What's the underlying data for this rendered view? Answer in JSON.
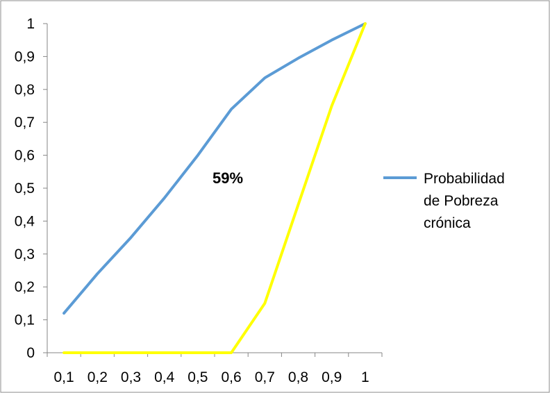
{
  "chart_data": {
    "type": "line",
    "x": [
      "0,1",
      "0,2",
      "0,3",
      "0,4",
      "0,5",
      "0,6",
      "0,7",
      "0,8",
      "0,9",
      "1"
    ],
    "y_ticks": [
      "0",
      "0,1",
      "0,2",
      "0,3",
      "0,4",
      "0,5",
      "0,6",
      "0,7",
      "0,8",
      "0,9",
      "1"
    ],
    "ylim": [
      0,
      1
    ],
    "grid": false,
    "legend_position": "right",
    "series": [
      {
        "name": "Probabilidad de Pobreza crónica",
        "color": "#5B9BD5",
        "points": [
          [
            0.1,
            0.12
          ],
          [
            0.2,
            0.24
          ],
          [
            0.3,
            0.35
          ],
          [
            0.4,
            0.47
          ],
          [
            0.5,
            0.6
          ],
          [
            0.6,
            0.74
          ],
          [
            0.7,
            0.835
          ],
          [
            0.8,
            0.895
          ],
          [
            0.9,
            0.95
          ],
          [
            1.0,
            1.0
          ]
        ]
      },
      {
        "color": "#FFFF00",
        "points": [
          [
            0.1,
            0.0
          ],
          [
            0.2,
            0.0
          ],
          [
            0.3,
            0.0
          ],
          [
            0.4,
            0.0
          ],
          [
            0.5,
            0.0
          ],
          [
            0.6,
            0.0
          ],
          [
            0.7,
            0.15
          ],
          [
            0.8,
            0.45
          ],
          [
            0.9,
            0.75
          ],
          [
            1.0,
            1.0
          ]
        ]
      }
    ],
    "annotations": [
      {
        "text": "59%"
      }
    ]
  }
}
